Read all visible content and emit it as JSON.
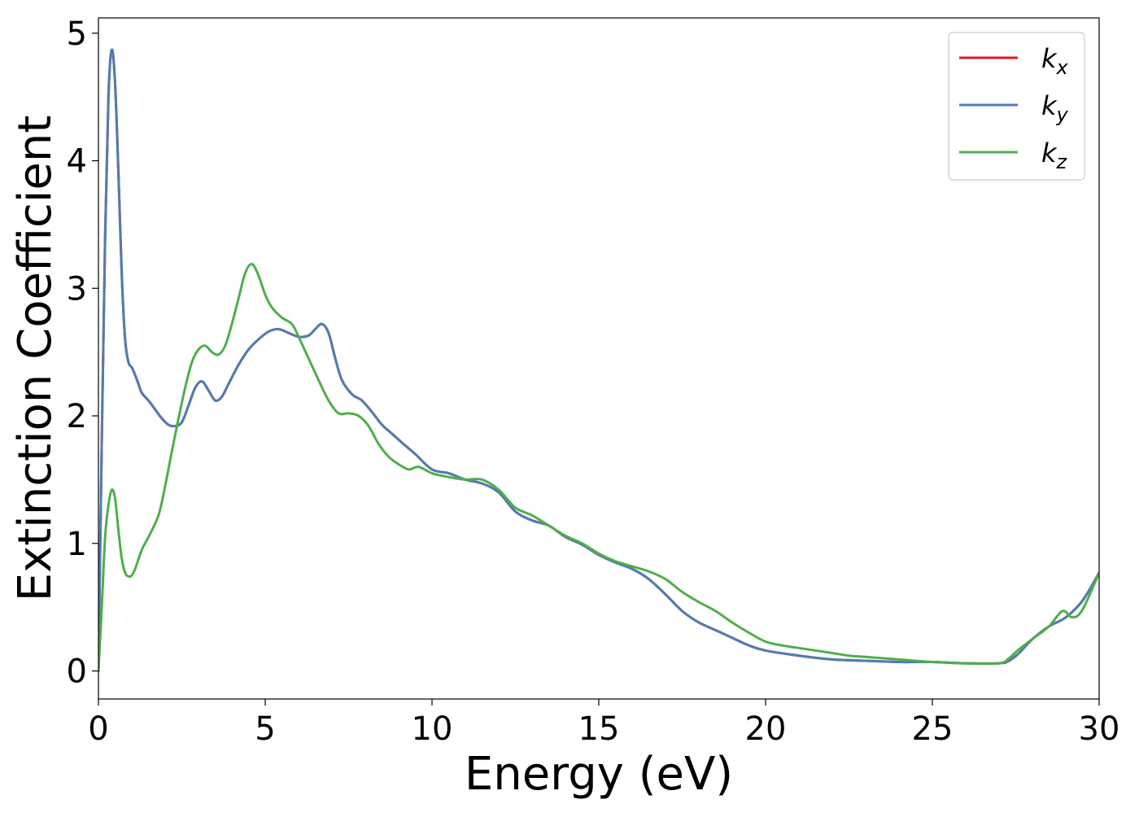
{
  "chart_data": {
    "type": "line",
    "title": "",
    "xlabel": "Energy (eV)",
    "ylabel": "Extinction Coefficient",
    "xlim": [
      0,
      30
    ],
    "ylim": [
      -0.22,
      5.12
    ],
    "xticks": [
      0,
      5,
      10,
      15,
      20,
      25,
      30
    ],
    "yticks": [
      0,
      1,
      2,
      3,
      4,
      5
    ],
    "grid": false,
    "legend_position": "top-right",
    "series": [
      {
        "name": "k_x",
        "legend_base": "k",
        "legend_sub": "x",
        "color": "#e41a1c",
        "x": [
          0,
          0.1,
          0.2,
          0.3,
          0.4,
          0.5,
          0.6,
          0.7,
          0.8,
          0.9,
          1.0,
          1.1,
          1.2,
          1.3,
          1.5,
          1.7,
          1.9,
          2.1,
          2.3,
          2.5,
          2.7,
          2.9,
          3.1,
          3.3,
          3.5,
          3.7,
          3.9,
          4.2,
          4.5,
          4.8,
          5.1,
          5.4,
          5.7,
          6.0,
          6.3,
          6.5,
          6.7,
          6.9,
          7.1,
          7.3,
          7.6,
          7.9,
          8.2,
          8.5,
          8.8,
          9.1,
          9.5,
          10.0,
          10.5,
          11.0,
          11.5,
          12.0,
          12.5,
          13.0,
          13.5,
          14.0,
          14.5,
          15.0,
          15.5,
          16.0,
          16.5,
          17.0,
          17.5,
          18.0,
          18.5,
          19.0,
          19.5,
          20.0,
          21.0,
          22.0,
          23.0,
          24.0,
          25.0,
          26.0,
          27.0,
          27.3,
          27.6,
          28.0,
          28.5,
          29.0,
          29.5,
          30.0
        ],
        "y": [
          0.0,
          1.8,
          3.4,
          4.5,
          4.87,
          4.6,
          3.9,
          3.1,
          2.6,
          2.42,
          2.38,
          2.32,
          2.25,
          2.18,
          2.12,
          2.05,
          1.98,
          1.93,
          1.92,
          1.95,
          2.08,
          2.22,
          2.27,
          2.2,
          2.12,
          2.15,
          2.25,
          2.4,
          2.52,
          2.6,
          2.66,
          2.68,
          2.65,
          2.62,
          2.63,
          2.68,
          2.72,
          2.65,
          2.45,
          2.28,
          2.17,
          2.12,
          2.03,
          1.93,
          1.86,
          1.79,
          1.7,
          1.58,
          1.55,
          1.5,
          1.47,
          1.4,
          1.25,
          1.18,
          1.14,
          1.05,
          0.99,
          0.91,
          0.85,
          0.8,
          0.72,
          0.6,
          0.47,
          0.38,
          0.32,
          0.26,
          0.2,
          0.16,
          0.12,
          0.09,
          0.08,
          0.07,
          0.07,
          0.06,
          0.06,
          0.08,
          0.14,
          0.25,
          0.35,
          0.42,
          0.55,
          0.77
        ]
      },
      {
        "name": "k_y",
        "legend_base": "k",
        "legend_sub": "y",
        "color": "#4f7db3",
        "x": [
          0,
          0.1,
          0.2,
          0.3,
          0.4,
          0.5,
          0.6,
          0.7,
          0.8,
          0.9,
          1.0,
          1.1,
          1.2,
          1.3,
          1.5,
          1.7,
          1.9,
          2.1,
          2.3,
          2.5,
          2.7,
          2.9,
          3.1,
          3.3,
          3.5,
          3.7,
          3.9,
          4.2,
          4.5,
          4.8,
          5.1,
          5.4,
          5.7,
          6.0,
          6.3,
          6.5,
          6.7,
          6.9,
          7.1,
          7.3,
          7.6,
          7.9,
          8.2,
          8.5,
          8.8,
          9.1,
          9.5,
          10.0,
          10.5,
          11.0,
          11.5,
          12.0,
          12.5,
          13.0,
          13.5,
          14.0,
          14.5,
          15.0,
          15.5,
          16.0,
          16.5,
          17.0,
          17.5,
          18.0,
          18.5,
          19.0,
          19.5,
          20.0,
          21.0,
          22.0,
          23.0,
          24.0,
          25.0,
          26.0,
          27.0,
          27.3,
          27.6,
          28.0,
          28.5,
          29.0,
          29.5,
          30.0
        ],
        "y": [
          0.0,
          1.8,
          3.4,
          4.5,
          4.87,
          4.6,
          3.9,
          3.1,
          2.6,
          2.42,
          2.38,
          2.32,
          2.25,
          2.18,
          2.12,
          2.05,
          1.98,
          1.93,
          1.92,
          1.95,
          2.08,
          2.22,
          2.27,
          2.2,
          2.12,
          2.15,
          2.25,
          2.4,
          2.52,
          2.6,
          2.66,
          2.68,
          2.65,
          2.62,
          2.63,
          2.68,
          2.72,
          2.65,
          2.45,
          2.28,
          2.17,
          2.12,
          2.03,
          1.93,
          1.86,
          1.79,
          1.7,
          1.58,
          1.55,
          1.5,
          1.47,
          1.4,
          1.25,
          1.18,
          1.14,
          1.05,
          0.99,
          0.91,
          0.85,
          0.8,
          0.72,
          0.6,
          0.47,
          0.38,
          0.32,
          0.26,
          0.2,
          0.16,
          0.12,
          0.09,
          0.08,
          0.07,
          0.07,
          0.06,
          0.06,
          0.08,
          0.14,
          0.25,
          0.35,
          0.42,
          0.55,
          0.77
        ]
      },
      {
        "name": "k_z",
        "legend_base": "k",
        "legend_sub": "z",
        "color": "#4daf4a",
        "x": [
          0,
          0.1,
          0.2,
          0.3,
          0.4,
          0.5,
          0.6,
          0.7,
          0.8,
          0.9,
          1.0,
          1.1,
          1.3,
          1.5,
          1.8,
          2.0,
          2.2,
          2.4,
          2.6,
          2.8,
          3.0,
          3.2,
          3.4,
          3.6,
          3.8,
          4.0,
          4.2,
          4.4,
          4.6,
          4.8,
          5.0,
          5.2,
          5.5,
          5.8,
          6.0,
          6.3,
          6.6,
          6.9,
          7.2,
          7.5,
          7.8,
          8.1,
          8.4,
          8.7,
          9.0,
          9.3,
          9.6,
          10.0,
          10.5,
          11.0,
          11.5,
          12.0,
          12.5,
          13.0,
          13.5,
          14.0,
          14.5,
          15.0,
          15.5,
          16.0,
          16.5,
          17.0,
          17.5,
          18.0,
          18.5,
          19.0,
          19.5,
          20.0,
          20.5,
          21.0,
          22.0,
          22.5,
          23.0,
          24.0,
          25.0,
          26.0,
          27.0,
          27.3,
          27.6,
          28.0,
          28.5,
          28.9,
          29.2,
          29.5,
          30.0
        ],
        "y": [
          0.0,
          0.5,
          1.05,
          1.3,
          1.42,
          1.35,
          1.1,
          0.88,
          0.77,
          0.74,
          0.75,
          0.8,
          0.95,
          1.05,
          1.22,
          1.45,
          1.72,
          1.98,
          2.22,
          2.42,
          2.52,
          2.55,
          2.5,
          2.48,
          2.55,
          2.72,
          2.92,
          3.12,
          3.19,
          3.1,
          2.95,
          2.85,
          2.77,
          2.72,
          2.62,
          2.45,
          2.28,
          2.12,
          2.02,
          2.02,
          2.0,
          1.92,
          1.78,
          1.68,
          1.62,
          1.58,
          1.6,
          1.55,
          1.52,
          1.5,
          1.5,
          1.42,
          1.28,
          1.22,
          1.14,
          1.06,
          1.0,
          0.92,
          0.86,
          0.82,
          0.78,
          0.72,
          0.62,
          0.54,
          0.47,
          0.38,
          0.3,
          0.23,
          0.2,
          0.18,
          0.14,
          0.12,
          0.11,
          0.09,
          0.07,
          0.06,
          0.06,
          0.1,
          0.17,
          0.25,
          0.35,
          0.47,
          0.42,
          0.48,
          0.77
        ]
      }
    ]
  }
}
